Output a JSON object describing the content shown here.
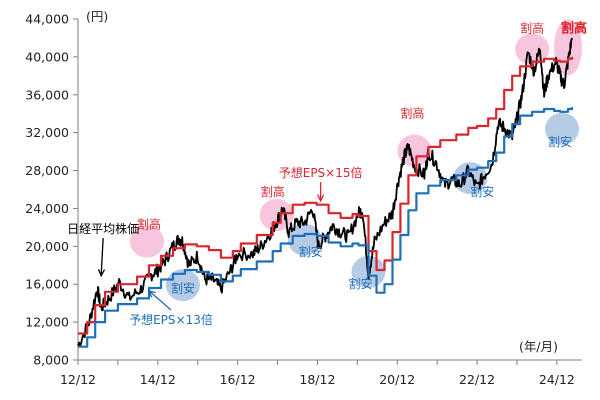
{
  "chart_data": {
    "type": "line",
    "ylabel": "(円)",
    "xlabel": "(年/月)",
    "ylim": [
      8000,
      44000
    ],
    "y_ticks": [
      "8,000",
      "12,000",
      "16,000",
      "20,000",
      "24,000",
      "28,000",
      "32,000",
      "36,000",
      "40,000",
      "44,000"
    ],
    "x_ticks": [
      "12/12",
      "14/12",
      "16/12",
      "18/12",
      "20/12",
      "22/12",
      "24/12"
    ],
    "grid": false,
    "series": [
      {
        "name": "日経平均株価",
        "color": "#000000",
        "points": [
          [
            2012.92,
            9500
          ],
          [
            2013.2,
            12000
          ],
          [
            2013.4,
            15500
          ],
          [
            2013.5,
            13500
          ],
          [
            2013.7,
            14500
          ],
          [
            2013.95,
            16200
          ],
          [
            2014.2,
            14500
          ],
          [
            2014.5,
            15500
          ],
          [
            2014.75,
            17000
          ],
          [
            2014.92,
            17500
          ],
          [
            2015.1,
            18500
          ],
          [
            2015.3,
            20000
          ],
          [
            2015.45,
            20800
          ],
          [
            2015.55,
            20500
          ],
          [
            2015.7,
            18000
          ],
          [
            2015.92,
            19000
          ],
          [
            2016.1,
            16500
          ],
          [
            2016.3,
            16500
          ],
          [
            2016.5,
            15500
          ],
          [
            2016.75,
            17500
          ],
          [
            2016.92,
            19200
          ],
          [
            2017.3,
            19200
          ],
          [
            2017.5,
            20000
          ],
          [
            2017.75,
            21500
          ],
          [
            2017.92,
            22800
          ],
          [
            2018.05,
            24000
          ],
          [
            2018.2,
            21500
          ],
          [
            2018.4,
            22500
          ],
          [
            2018.6,
            22500
          ],
          [
            2018.8,
            24000
          ],
          [
            2018.95,
            20000
          ],
          [
            2019.1,
            21000
          ],
          [
            2019.3,
            22200
          ],
          [
            2019.5,
            21500
          ],
          [
            2019.7,
            21000
          ],
          [
            2019.95,
            23500
          ],
          [
            2020.05,
            23800
          ],
          [
            2020.2,
            17000
          ],
          [
            2020.35,
            20500
          ],
          [
            2020.6,
            22500
          ],
          [
            2020.8,
            23500
          ],
          [
            2020.95,
            27000
          ],
          [
            2021.1,
            29500
          ],
          [
            2021.2,
            30500
          ],
          [
            2021.35,
            28500
          ],
          [
            2021.6,
            27500
          ],
          [
            2021.7,
            30000
          ],
          [
            2021.9,
            28800
          ],
          [
            2022.1,
            26500
          ],
          [
            2022.3,
            27000
          ],
          [
            2022.5,
            26500
          ],
          [
            2022.7,
            28000
          ],
          [
            2022.92,
            26200
          ],
          [
            2023.1,
            27500
          ],
          [
            2023.3,
            28800
          ],
          [
            2023.45,
            33000
          ],
          [
            2023.6,
            32500
          ],
          [
            2023.8,
            31500
          ],
          [
            2023.92,
            33500
          ],
          [
            2024.05,
            36000
          ],
          [
            2024.2,
            40500
          ],
          [
            2024.35,
            38500
          ],
          [
            2024.5,
            41000
          ],
          [
            2024.6,
            36000
          ],
          [
            2024.7,
            38000
          ],
          [
            2024.9,
            39500
          ],
          [
            2025.0,
            38000
          ],
          [
            2025.1,
            37000
          ],
          [
            2025.2,
            39500
          ],
          [
            2025.3,
            42000
          ]
        ]
      },
      {
        "name": "予想EPS×15倍",
        "color": "#d9262d",
        "points": [
          [
            2012.92,
            10800
          ],
          [
            2013.15,
            12000
          ],
          [
            2013.35,
            13800
          ],
          [
            2013.6,
            15200
          ],
          [
            2013.92,
            16000
          ],
          [
            2014.4,
            16800
          ],
          [
            2014.7,
            18000
          ],
          [
            2015.0,
            19000
          ],
          [
            2015.3,
            19800
          ],
          [
            2015.6,
            20200
          ],
          [
            2015.9,
            20000
          ],
          [
            2016.2,
            19600
          ],
          [
            2016.5,
            18800
          ],
          [
            2016.8,
            19500
          ],
          [
            2017.0,
            20300
          ],
          [
            2017.4,
            21200
          ],
          [
            2017.8,
            22500
          ],
          [
            2018.0,
            23500
          ],
          [
            2018.3,
            24400
          ],
          [
            2018.6,
            24600
          ],
          [
            2018.9,
            24400
          ],
          [
            2019.2,
            23500
          ],
          [
            2019.5,
            23000
          ],
          [
            2019.8,
            23400
          ],
          [
            2019.95,
            23200
          ],
          [
            2020.2,
            19500
          ],
          [
            2020.4,
            17500
          ],
          [
            2020.6,
            18500
          ],
          [
            2020.8,
            21500
          ],
          [
            2021.0,
            24500
          ],
          [
            2021.2,
            27500
          ],
          [
            2021.4,
            29500
          ],
          [
            2021.7,
            30500
          ],
          [
            2022.0,
            31200
          ],
          [
            2022.4,
            31800
          ],
          [
            2022.7,
            32500
          ],
          [
            2022.92,
            32700
          ],
          [
            2023.2,
            33500
          ],
          [
            2023.4,
            34500
          ],
          [
            2023.6,
            36500
          ],
          [
            2023.8,
            38000
          ],
          [
            2024.0,
            39000
          ],
          [
            2024.3,
            39500
          ],
          [
            2024.6,
            39800
          ],
          [
            2024.85,
            39600
          ],
          [
            2025.0,
            39500
          ],
          [
            2025.2,
            39800
          ],
          [
            2025.3,
            40000
          ]
        ]
      },
      {
        "name": "予想EPS×13倍",
        "color": "#1f6fb8",
        "points": [
          [
            2012.92,
            9400
          ],
          [
            2013.15,
            10400
          ],
          [
            2013.35,
            12000
          ],
          [
            2013.6,
            13200
          ],
          [
            2013.92,
            13900
          ],
          [
            2014.4,
            14500
          ],
          [
            2014.7,
            15600
          ],
          [
            2015.0,
            16500
          ],
          [
            2015.3,
            17100
          ],
          [
            2015.6,
            17500
          ],
          [
            2015.9,
            17300
          ],
          [
            2016.2,
            17000
          ],
          [
            2016.5,
            16300
          ],
          [
            2016.8,
            16900
          ],
          [
            2017.0,
            17600
          ],
          [
            2017.4,
            18400
          ],
          [
            2017.8,
            19500
          ],
          [
            2018.0,
            20300
          ],
          [
            2018.3,
            21100
          ],
          [
            2018.6,
            21300
          ],
          [
            2018.9,
            21100
          ],
          [
            2019.2,
            20400
          ],
          [
            2019.5,
            20000
          ],
          [
            2019.8,
            20300
          ],
          [
            2019.95,
            20100
          ],
          [
            2020.2,
            16900
          ],
          [
            2020.4,
            15100
          ],
          [
            2020.6,
            16000
          ],
          [
            2020.8,
            18600
          ],
          [
            2021.0,
            21200
          ],
          [
            2021.2,
            23800
          ],
          [
            2021.4,
            25600
          ],
          [
            2021.7,
            26400
          ],
          [
            2022.0,
            27000
          ],
          [
            2022.4,
            27500
          ],
          [
            2022.7,
            28100
          ],
          [
            2022.92,
            28300
          ],
          [
            2023.2,
            29000
          ],
          [
            2023.4,
            29900
          ],
          [
            2023.6,
            31600
          ],
          [
            2023.8,
            32900
          ],
          [
            2024.0,
            33800
          ],
          [
            2024.3,
            34200
          ],
          [
            2024.6,
            34500
          ],
          [
            2024.85,
            34300
          ],
          [
            2025.0,
            34200
          ],
          [
            2025.2,
            34500
          ],
          [
            2025.3,
            34700
          ]
        ]
      }
    ],
    "highlights": [
      {
        "label": "割高",
        "kind": "expensive",
        "x": 2014.65,
        "y": 20500
      },
      {
        "label": "割安",
        "kind": "cheap",
        "x": 2015.55,
        "y": 15900
      },
      {
        "label": "割高",
        "kind": "expensive",
        "x": 2017.9,
        "y": 23300
      },
      {
        "label": "割安",
        "kind": "cheap",
        "x": 2018.6,
        "y": 20700
      },
      {
        "label": "割安",
        "kind": "cheap",
        "x": 2020.2,
        "y": 17300
      },
      {
        "label": "割高",
        "kind": "expensive",
        "x": 2021.35,
        "y": 30100
      },
      {
        "label": "割安",
        "kind": "cheap",
        "x": 2022.75,
        "y": 27200
      },
      {
        "label": "割高",
        "kind": "expensive",
        "x": 2024.3,
        "y": 40800
      },
      {
        "label": "割安",
        "kind": "cheap",
        "x": 2025.05,
        "y": 32400
      },
      {
        "label": "割高",
        "kind": "expensive",
        "x": 2025.2,
        "y": 41000
      }
    ],
    "annotations": [
      {
        "text": "日経平均株価",
        "x": 2013.55,
        "y": 21400,
        "arrow_to": [
          2013.5,
          16900
        ]
      },
      {
        "text": "予想EPS×15倍",
        "x": 2019.0,
        "y": 27300,
        "arrow_to": [
          2019.0,
          24800
        ],
        "color": "#d9262d"
      },
      {
        "text": "予想EPS×13倍",
        "x": 2015.25,
        "y": 11800,
        "arrow_to": [
          2014.7,
          15300
        ],
        "color": "#1f6fb8"
      },
      {
        "text": "割高",
        "x": 2014.7,
        "y": 21900,
        "color": "#d9262d"
      },
      {
        "text": "割安",
        "x": 2015.55,
        "y": 15100,
        "color": "#1f6fb8"
      },
      {
        "text": "割高",
        "x": 2017.8,
        "y": 25300,
        "color": "#d9262d"
      },
      {
        "text": "割安",
        "x": 2018.75,
        "y": 19000,
        "color": "#1f6fb8"
      },
      {
        "text": "割安",
        "x": 2020.0,
        "y": 15600,
        "color": "#1f6fb8"
      },
      {
        "text": "割高",
        "x": 2021.3,
        "y": 33600,
        "color": "#d9262d"
      },
      {
        "text": "割安",
        "x": 2023.05,
        "y": 25300,
        "color": "#1f6fb8"
      },
      {
        "text": "割高",
        "x": 2024.3,
        "y": 42600,
        "color": "#d9262d"
      },
      {
        "text": "割安",
        "x": 2025.0,
        "y": 30600,
        "color": "#1f6fb8"
      },
      {
        "text": "割高",
        "x": 2025.35,
        "y": 42600,
        "color": "#e01f26",
        "bold": true
      }
    ]
  }
}
